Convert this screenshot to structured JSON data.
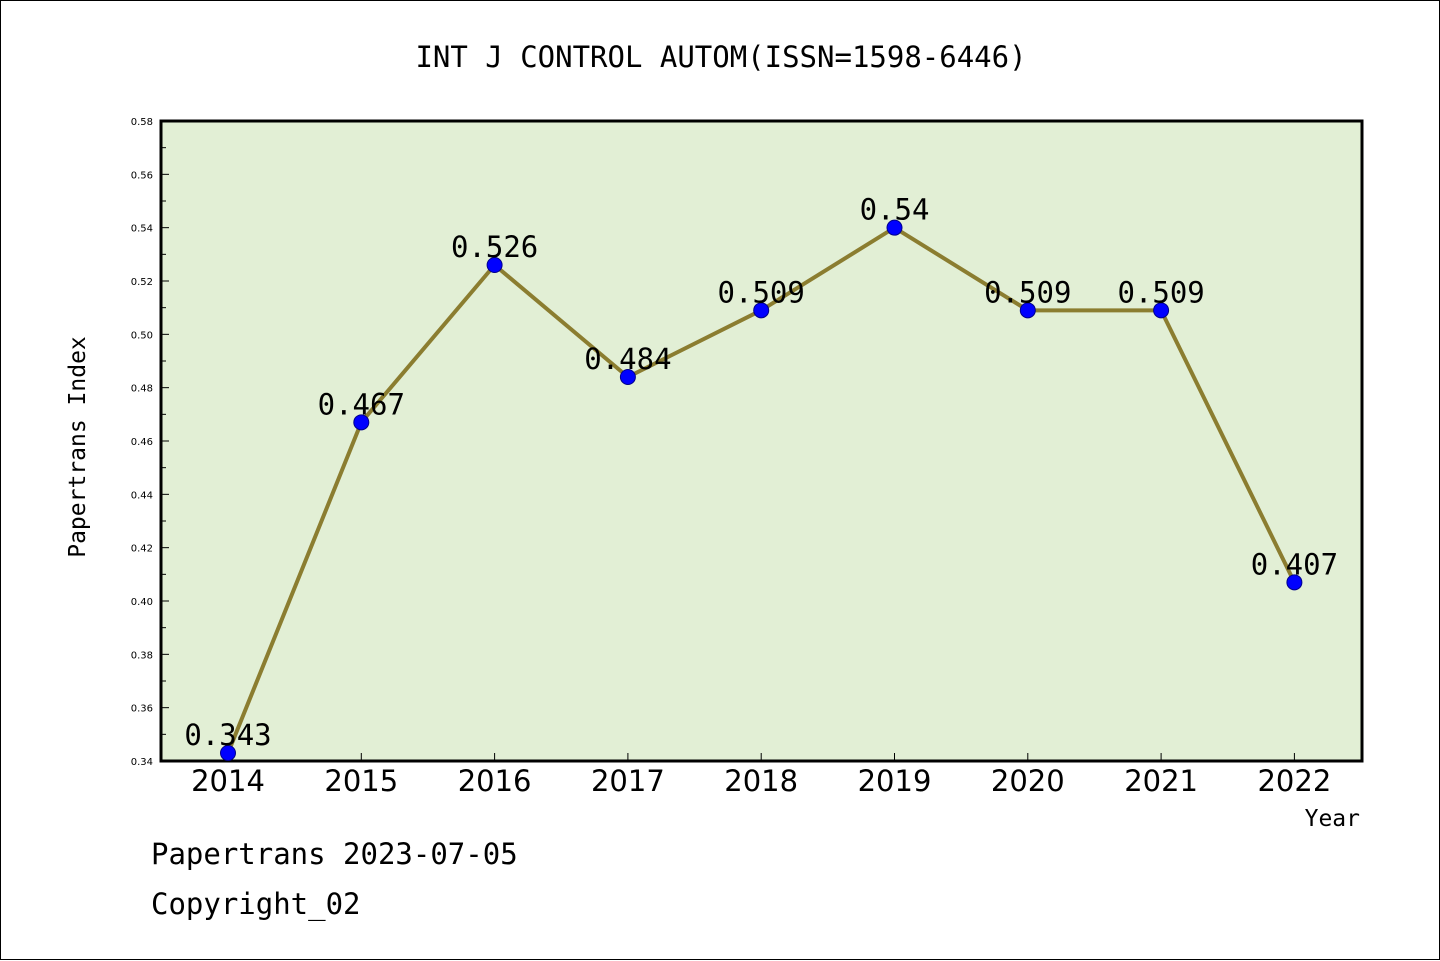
{
  "chart_data": {
    "type": "line",
    "title": "INT J CONTROL AUTOM(ISSN=1598-6446)",
    "xlabel": "Year",
    "ylabel": "Papertrans Index",
    "ylim": [
      0.34,
      0.58
    ],
    "yticks": [
      "0.34",
      "0.36",
      "0.38",
      "0.40",
      "0.42",
      "0.44",
      "0.46",
      "0.48",
      "0.50",
      "0.52",
      "0.54",
      "0.56",
      "0.58"
    ],
    "categories": [
      "2014",
      "2015",
      "2016",
      "2017",
      "2018",
      "2019",
      "2020",
      "2021",
      "2022"
    ],
    "series": [
      {
        "values": [
          0.343,
          0.467,
          0.526,
          0.484,
          0.509,
          0.54,
          0.509,
          0.509,
          0.407
        ],
        "labels": [
          "0.343",
          "0.467",
          "0.526",
          "0.484",
          "0.509",
          "0.54",
          "0.509",
          "0.509",
          "0.407"
        ]
      }
    ],
    "grid": false,
    "colors": {
      "plot_background": "#e2efd5",
      "line": "#8b7d30",
      "marker": "#0000ff"
    }
  },
  "footer": {
    "line1": "Papertrans 2023-07-05",
    "line2": "Copyright_02"
  }
}
